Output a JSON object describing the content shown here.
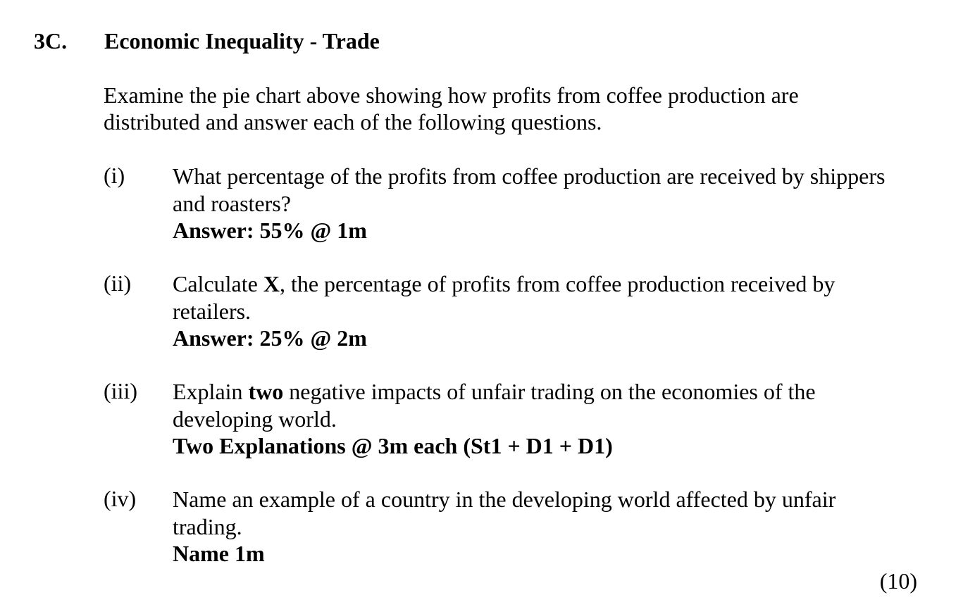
{
  "question": {
    "number": "3C.",
    "title": "Economic Inequality - Trade",
    "intro_line1": "Examine the pie chart above showing how profits from coffee production are",
    "intro_line2": "distributed and answer each of the following questions."
  },
  "parts": [
    {
      "label": "(i)",
      "line1": "What percentage of the profits from coffee production are received by shippers",
      "line2": "and roasters?",
      "answer": "Answer: 55% @ 1m"
    },
    {
      "label": "(ii)",
      "line1_a": "Calculate ",
      "line1_bold": "X",
      "line1_b": ", the percentage of profits from coffee production received by",
      "line2": "retailers.",
      "answer": "Answer: 25% @ 2m"
    },
    {
      "label": "(iii)",
      "line1_a": "Explain ",
      "line1_bold": "two",
      "line1_b": " negative impacts of unfair trading on the economies of the",
      "line2": "developing world.",
      "answer": "Two Explanations @ 3m each (St1 + D1 + D1)"
    },
    {
      "label": "(iv)",
      "line1": "Name an example of a country in the developing world affected by unfair",
      "line2": "trading.",
      "answer": "Name 1m"
    }
  ],
  "total_marks": "(10)"
}
